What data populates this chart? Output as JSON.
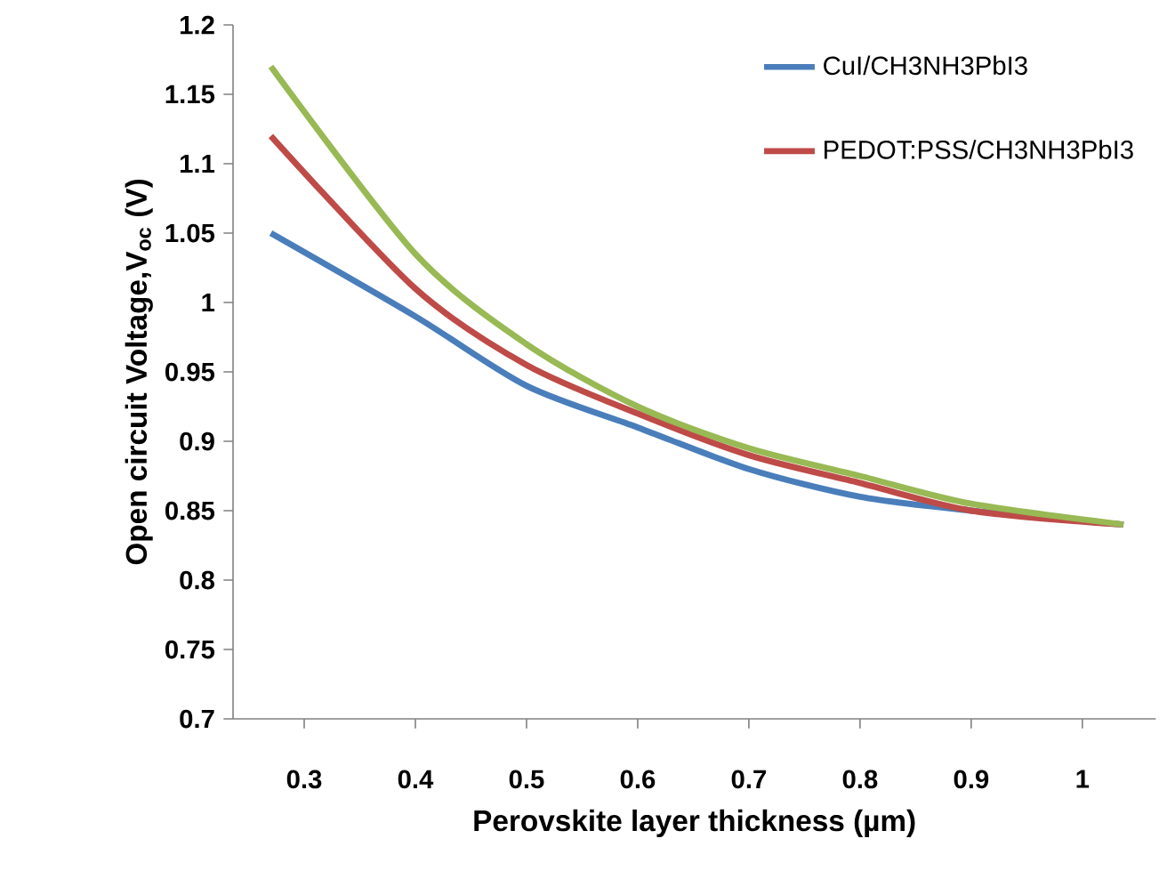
{
  "chart_data": {
    "type": "line",
    "xlabel": "Perovskite layer thickness (µm)",
    "ylabel": "Open circuit Voltage,V$_{oc}$ (V)",
    "xlim": [
      0.236,
      1.066
    ],
    "ylim": [
      0.7,
      1.2
    ],
    "xticks": [
      0.3,
      0.4,
      0.5,
      0.6,
      0.7,
      0.8,
      0.9,
      1
    ],
    "yticks": [
      0.7,
      0.75,
      0.8,
      0.85,
      0.9,
      0.95,
      1,
      1.05,
      1.1,
      1.15,
      1.2
    ],
    "legend": "top right",
    "grid": false,
    "marker": "none",
    "line_style": "solid",
    "series": [
      {
        "name": "CuI/CH3NH3PbI3",
        "color": "#4a7ebb",
        "x": [
          0.27,
          0.4,
          0.5,
          0.6,
          0.7,
          0.8,
          0.9,
          1.037
        ],
        "values": [
          1.05,
          0.99,
          0.94,
          0.91,
          0.88,
          0.86,
          0.85,
          0.84
        ]
      },
      {
        "name": "PEDOT:PSS/CH3NH3PbI3",
        "color": "#be4b48",
        "x": [
          0.27,
          0.4,
          0.5,
          0.6,
          0.7,
          0.8,
          0.9,
          1.037
        ],
        "values": [
          1.12,
          1.01,
          0.955,
          0.92,
          0.89,
          0.87,
          0.85,
          0.84
        ]
      },
      {
        "color": "#98b954",
        "x": [
          0.27,
          0.4,
          0.5,
          0.6,
          0.7,
          0.8,
          0.9,
          1.037
        ],
        "values": [
          1.17,
          1.035,
          0.97,
          0.925,
          0.895,
          0.875,
          0.855,
          0.84
        ]
      }
    ]
  }
}
